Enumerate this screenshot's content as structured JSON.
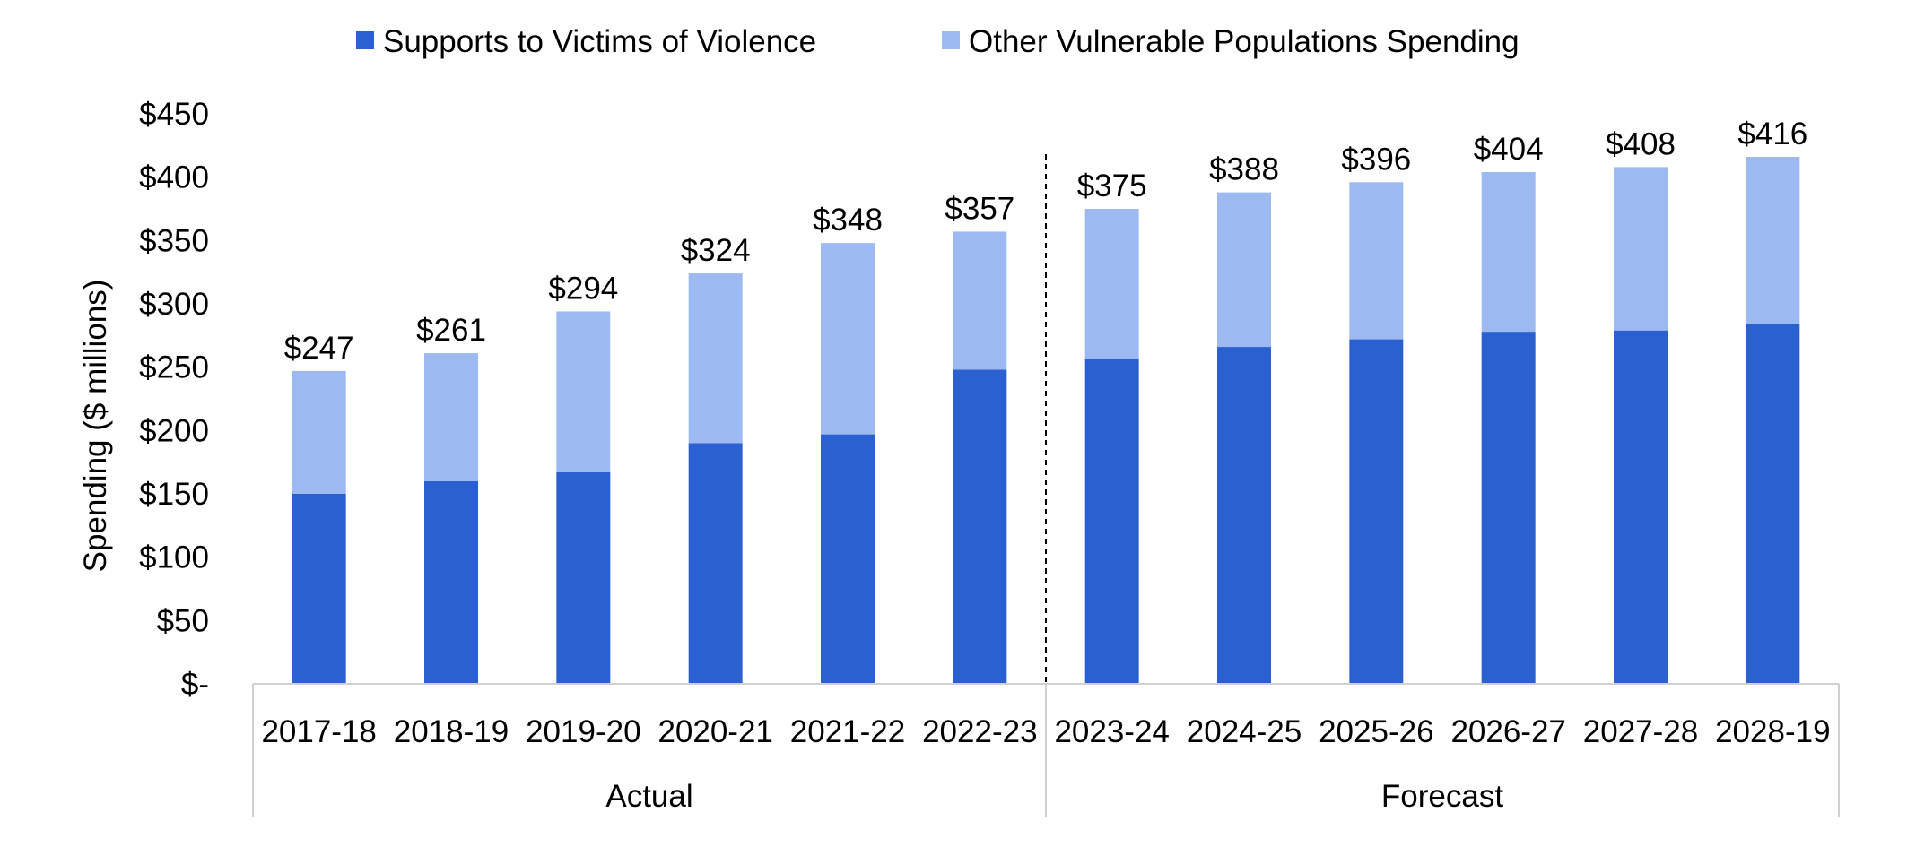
{
  "chart_data": {
    "type": "bar",
    "stacked": true,
    "title": "",
    "xlabel": "",
    "ylabel": "Spending ($ millions)",
    "ylim": [
      0,
      450
    ],
    "y_ticks": [
      {
        "value": 0,
        "label": "$-"
      },
      {
        "value": 50,
        "label": "$50"
      },
      {
        "value": 100,
        "label": "$100"
      },
      {
        "value": 150,
        "label": "$150"
      },
      {
        "value": 200,
        "label": "$200"
      },
      {
        "value": 250,
        "label": "$250"
      },
      {
        "value": 300,
        "label": "$300"
      },
      {
        "value": 350,
        "label": "$350"
      },
      {
        "value": 400,
        "label": "$400"
      },
      {
        "value": 450,
        "label": "$450"
      }
    ],
    "categories": [
      "2017-18",
      "2018-19",
      "2019-20",
      "2020-21",
      "2021-22",
      "2022-23",
      "2023-24",
      "2024-25",
      "2025-26",
      "2026-27",
      "2027-28",
      "2028-19"
    ],
    "groups": [
      {
        "label": "Actual",
        "start": 0,
        "end": 5
      },
      {
        "label": "Forecast",
        "start": 6,
        "end": 11
      }
    ],
    "series": [
      {
        "name": "Supports to Victims of Violence",
        "color": "#2b60d0",
        "values": [
          150,
          160,
          167,
          190,
          197,
          248,
          257,
          266,
          272,
          278,
          279,
          284
        ]
      },
      {
        "name": "Other Vulnerable Populations Spending",
        "color": "#9db9f1",
        "values": [
          97,
          101,
          127,
          134,
          151,
          109,
          118,
          122,
          124,
          126,
          129,
          132
        ]
      }
    ],
    "totals": [
      "$247",
      "$261",
      "$294",
      "$324",
      "$348",
      "$357",
      "$375",
      "$388",
      "$396",
      "$404",
      "$408",
      "$416"
    ],
    "legend_position": "top",
    "grid": false,
    "axis_color": "#d0d0d0",
    "divider_color": "#000000"
  }
}
